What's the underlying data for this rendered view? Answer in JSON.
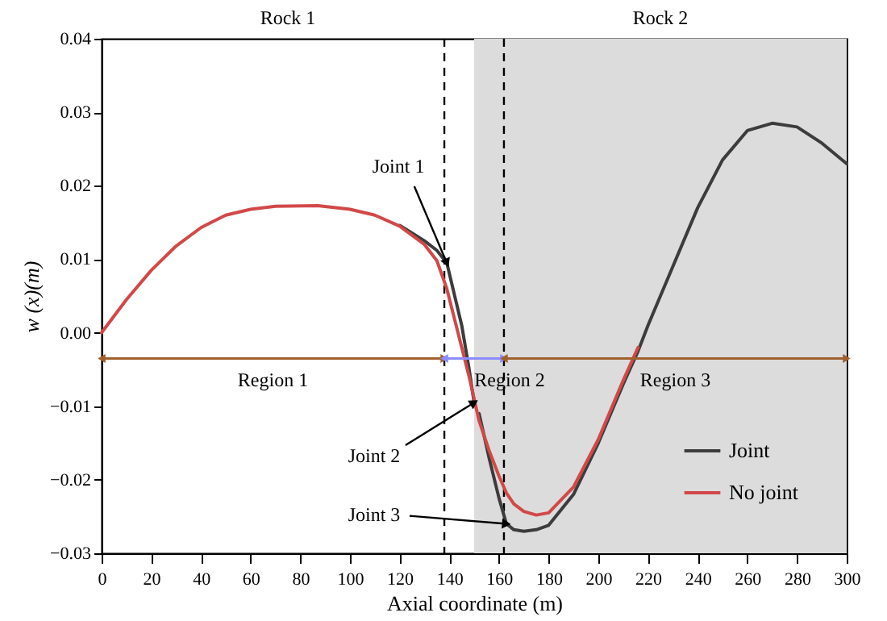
{
  "chart_data": {
    "type": "line",
    "xlabel": "Axial coordinate (m)",
    "ylabel": "w (x)(m)",
    "x": [
      0,
      10,
      20,
      30,
      40,
      50,
      60,
      70,
      87,
      100,
      110,
      120,
      130,
      135,
      139,
      145,
      148,
      150,
      151,
      152,
      156,
      160,
      163,
      166,
      170,
      175,
      180,
      190,
      200,
      210,
      216,
      220,
      230,
      240,
      250,
      260,
      270,
      280,
      290,
      300
    ],
    "series": [
      {
        "name": "Joint",
        "color": "#3c3c3c",
        "values": [
          null,
          null,
          null,
          null,
          null,
          null,
          null,
          null,
          null,
          null,
          null,
          0.0146,
          0.0125,
          0.0112,
          0.0095,
          0.001,
          -0.005,
          -0.0095,
          null,
          -0.011,
          -0.017,
          -0.0225,
          -0.026,
          -0.0268,
          -0.027,
          -0.0268,
          -0.0262,
          -0.022,
          -0.015,
          -0.007,
          -0.0025,
          0.001,
          0.009,
          0.017,
          0.0235,
          0.0275,
          0.0285,
          0.028,
          0.0258,
          0.023
        ]
      },
      {
        "name": "No joint",
        "color": "#d24848",
        "values": [
          0,
          0.0045,
          0.0085,
          0.0118,
          0.0143,
          0.016,
          0.0168,
          0.0172,
          0.0173,
          0.0168,
          0.016,
          0.0145,
          0.012,
          0.0098,
          0.006,
          -0.002,
          -0.006,
          -0.009,
          -0.0105,
          -0.012,
          -0.016,
          -0.0195,
          -0.0218,
          -0.0233,
          -0.0243,
          -0.0248,
          -0.0245,
          -0.021,
          -0.0145,
          -0.0065,
          -0.002,
          null,
          null,
          null,
          null,
          null,
          null,
          null,
          null,
          null
        ]
      }
    ],
    "xlim": [
      0,
      300
    ],
    "xticks": [
      0,
      20,
      40,
      60,
      80,
      100,
      120,
      140,
      160,
      180,
      200,
      220,
      240,
      260,
      280,
      300
    ],
    "ylim": [
      -0.03,
      0.04
    ],
    "yticks": [
      -0.03,
      -0.02,
      -0.01,
      {
        "value": 0,
        "label": "0.00"
      },
      0.01,
      0.02,
      0.03,
      0.04
    ],
    "ref_lines": [
      {
        "axis": "x",
        "value": 138,
        "line_style": "dashed"
      },
      {
        "axis": "x",
        "value": 162,
        "line_style": "dashed"
      }
    ],
    "bands": [
      {
        "axis": "x",
        "from": 150,
        "to": 300,
        "label": "Rock 2",
        "color": "#dcdcdc"
      }
    ],
    "annotations": [
      "Rock 1",
      "Region 1",
      "Region 2",
      "Region 3",
      {
        "text": "Joint 1",
        "x": 139,
        "y": 0.0095
      },
      {
        "text": "Joint 2",
        "x": 150,
        "y": -0.0095
      },
      {
        "text": "Joint 3",
        "x": 163,
        "y": -0.026
      }
    ],
    "legend": "bottom right"
  }
}
